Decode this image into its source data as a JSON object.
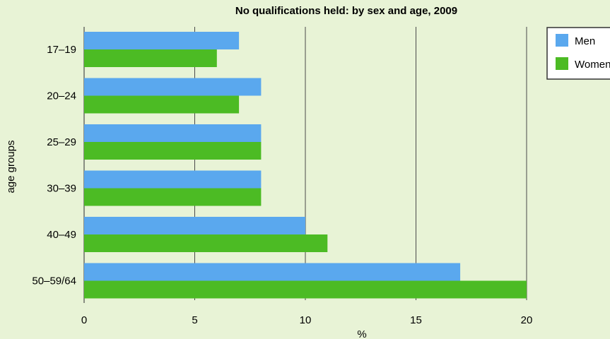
{
  "chart_data": {
    "type": "bar",
    "orientation": "horizontal",
    "title": "No qualifications held: by sex and age, 2009",
    "xlabel": "%",
    "ylabel": "age groups",
    "categories": [
      "17–19",
      "20–24",
      "25–29",
      "30–39",
      "40–49",
      "50–59/64"
    ],
    "series": [
      {
        "name": "Men",
        "color": "#5aa8ee",
        "values": [
          7,
          8,
          8,
          8,
          10,
          17
        ]
      },
      {
        "name": "Women",
        "color": "#4cbb24",
        "values": [
          6,
          7,
          8,
          8,
          11,
          20
        ]
      }
    ],
    "xlim": [
      0,
      20
    ],
    "xticks": [
      "0",
      "5",
      "10",
      "15",
      "20"
    ],
    "grid": "vertical",
    "legend": "top-right",
    "colors": {
      "background": "#e8f3d6",
      "grid": "#4a4a4a"
    }
  }
}
